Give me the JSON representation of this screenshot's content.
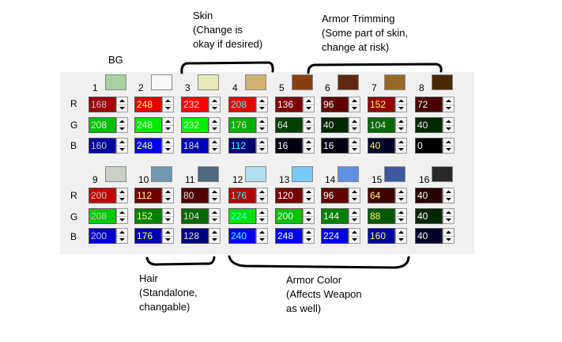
{
  "row_labels": [
    "R",
    "G",
    "B"
  ],
  "slots": [
    {
      "label": "1",
      "color": "#a8d0a0",
      "r": "168",
      "g": "208",
      "b": "160"
    },
    {
      "label": "2",
      "color": "#f8f8f8",
      "r": "248",
      "g": "248",
      "b": "248"
    },
    {
      "label": "3",
      "color": "#e8e8b8",
      "r": "232",
      "g": "232",
      "b": "184"
    },
    {
      "label": "4",
      "color": "#d0b070",
      "r": "208",
      "g": "176",
      "b": "112"
    },
    {
      "label": "5",
      "color": "#884010",
      "r": "136",
      "g": "64",
      "b": "16"
    },
    {
      "label": "6",
      "color": "#602810",
      "r": "96",
      "g": "40",
      "b": "16"
    },
    {
      "label": "7",
      "color": "#986828",
      "r": "152",
      "g": "104",
      "b": "40"
    },
    {
      "label": "8",
      "color": "#482800",
      "r": "72",
      "g": "40",
      "b": "0"
    },
    {
      "label": "9",
      "color": "#c8d0c8",
      "r": "200",
      "g": "208",
      "b": "200"
    },
    {
      "label": "10",
      "color": "#7098b0",
      "r": "112",
      "g": "152",
      "b": "176"
    },
    {
      "label": "11",
      "color": "#506880",
      "r": "80",
      "g": "104",
      "b": "128"
    },
    {
      "label": "12",
      "color": "#b0e0f0",
      "r": "176",
      "g": "224",
      "b": "240"
    },
    {
      "label": "13",
      "color": "#78c8f8",
      "r": "120",
      "g": "200",
      "b": "248"
    },
    {
      "label": "14",
      "color": "#6090e0",
      "r": "96",
      "g": "144",
      "b": "224"
    },
    {
      "label": "15",
      "color": "#4058a0",
      "r": "64",
      "g": "88",
      "b": "160"
    },
    {
      "label": "16",
      "color": "#282828",
      "r": "40",
      "g": "40",
      "b": "40"
    }
  ],
  "annotations": {
    "bg": "BG",
    "skin": "Skin\n(Change is\nokay if desired)",
    "armor_trimming": "Armor Trimming\n(Some part of skin,\nchange at risk)",
    "hair": "Hair\n(Standalone,\nchangable)",
    "armor_color": "Armor Color\n(Affects Weapon\nas well)"
  },
  "colors": {
    "r_field_bg": [
      "#a00000",
      "#e00000",
      "#ff0000",
      "#e00000",
      "#800000",
      "#600000",
      "#900000",
      "#480000",
      "#c00000",
      "#700000",
      "#500000",
      "#b00000",
      "#780000",
      "#600000",
      "#400000",
      "#280000"
    ],
    "g_field_bg": [
      "#00c000",
      "#00e800",
      "#00f000",
      "#00b000",
      "#004000",
      "#002800",
      "#006800",
      "#002800",
      "#00c800",
      "#008000",
      "#006800",
      "#00e000",
      "#00c000",
      "#008000",
      "#005800",
      "#002800"
    ],
    "b_field_bg": [
      "#0000a0",
      "#0000f0",
      "#0000b8",
      "#000070",
      "#000010",
      "#000010",
      "#000028",
      "#000000",
      "#0000c8",
      "#0000b0",
      "#000080",
      "#0000f0",
      "#0000f8",
      "#0000e0",
      "#0000a0",
      "#000028"
    ],
    "text_color": [
      "#c8c8c8",
      "#ffff80",
      "#e0e0e0",
      "#40ffff",
      "#ffffff",
      "#ffffff",
      "#ffff60",
      "#ffffff"
    ]
  }
}
